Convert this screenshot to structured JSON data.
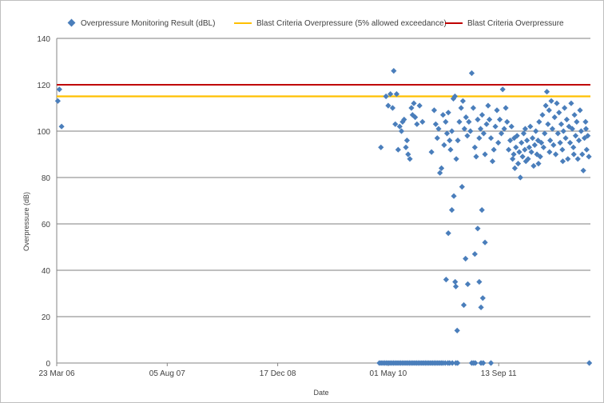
{
  "chart_data": {
    "type": "scatter",
    "title": "",
    "xlabel": "Date",
    "ylabel": "Overpressure (dB)",
    "ylim": [
      0,
      140
    ],
    "y_ticks": [
      0,
      20,
      40,
      60,
      80,
      100,
      120,
      140
    ],
    "x_ticks": [
      "23 Mar 06",
      "05 Aug 07",
      "17 Dec 08",
      "01 May 10",
      "13 Sep 11"
    ],
    "x_tick_days": [
      0,
      500,
      1000,
      1500,
      2000
    ],
    "xlim_days": [
      0,
      2415
    ],
    "grid": "horizontal major gridlines",
    "legend_position": "top",
    "colors": {
      "scatter": "#4a7ebb",
      "criteria_5pct": "#ffc000",
      "criteria": "#c00000",
      "grid": "#7f7f7f"
    },
    "series": [
      {
        "name": "Overpressure Monitoring Result (dBL)",
        "kind": "scatter",
        "points": [
          [
            5,
            113
          ],
          [
            12,
            118
          ],
          [
            22,
            102
          ],
          [
            1467,
            93
          ],
          [
            1490,
            115
          ],
          [
            1500,
            111
          ],
          [
            1510,
            116
          ],
          [
            1520,
            110
          ],
          [
            1525,
            126
          ],
          [
            1532,
            103
          ],
          [
            1538,
            116
          ],
          [
            1545,
            92
          ],
          [
            1552,
            102
          ],
          [
            1560,
            100
          ],
          [
            1565,
            104
          ],
          [
            1572,
            105
          ],
          [
            1580,
            93
          ],
          [
            1585,
            96
          ],
          [
            1590,
            90
          ],
          [
            1598,
            88
          ],
          [
            1605,
            110
          ],
          [
            1610,
            107
          ],
          [
            1616,
            112
          ],
          [
            1622,
            106
          ],
          [
            1630,
            103
          ],
          [
            1642,
            111
          ],
          [
            1655,
            104
          ],
          [
            1696,
            91
          ],
          [
            1708,
            109
          ],
          [
            1715,
            103
          ],
          [
            1722,
            97
          ],
          [
            1728,
            101
          ],
          [
            1734,
            82
          ],
          [
            1741,
            84
          ],
          [
            1748,
            107
          ],
          [
            1753,
            94
          ],
          [
            1760,
            104
          ],
          [
            1766,
            99
          ],
          [
            1772,
            108
          ],
          [
            1778,
            96
          ],
          [
            1782,
            92
          ],
          [
            1788,
            100
          ],
          [
            1795,
            114
          ],
          [
            1802,
            115
          ],
          [
            1808,
            88
          ],
          [
            1815,
            96
          ],
          [
            1822,
            104
          ],
          [
            1830,
            110
          ],
          [
            1838,
            113
          ],
          [
            1845,
            101
          ],
          [
            1852,
            106
          ],
          [
            1858,
            98
          ],
          [
            1865,
            104
          ],
          [
            1872,
            100
          ],
          [
            1878,
            125
          ],
          [
            1885,
            110
          ],
          [
            1892,
            93
          ],
          [
            1898,
            89
          ],
          [
            1905,
            105
          ],
          [
            1912,
            97
          ],
          [
            1918,
            101
          ],
          [
            1925,
            107
          ],
          [
            1932,
            99
          ],
          [
            1938,
            90
          ],
          [
            1945,
            103
          ],
          [
            1952,
            111
          ],
          [
            1958,
            105
          ],
          [
            1965,
            97
          ],
          [
            1972,
            87
          ],
          [
            1978,
            92
          ],
          [
            1985,
            102
          ],
          [
            1992,
            109
          ],
          [
            1998,
            95
          ],
          [
            2005,
            105
          ],
          [
            2012,
            99
          ],
          [
            2018,
            118
          ],
          [
            2025,
            101
          ],
          [
            2032,
            110
          ],
          [
            2038,
            104
          ],
          [
            2045,
            92
          ],
          [
            2052,
            96
          ],
          [
            2058,
            102
          ],
          [
            2063,
            88
          ],
          [
            2068,
            90
          ],
          [
            2073,
            84
          ],
          [
            2078,
            93
          ],
          [
            2083,
            98
          ],
          [
            2088,
            86
          ],
          [
            2093,
            91
          ],
          [
            2098,
            80
          ],
          [
            2103,
            95
          ],
          [
            2108,
            89
          ],
          [
            2113,
            99
          ],
          [
            2118,
            92
          ],
          [
            2123,
            87
          ],
          [
            2128,
            96
          ],
          [
            2133,
            88
          ],
          [
            2138,
            93
          ],
          [
            2143,
            102
          ],
          [
            2148,
            91
          ],
          [
            2153,
            97
          ],
          [
            2158,
            85
          ],
          [
            2163,
            94
          ],
          [
            2168,
            100
          ],
          [
            2173,
            90
          ],
          [
            2178,
            96
          ],
          [
            2183,
            104
          ],
          [
            2188,
            89
          ],
          [
            2193,
            95
          ],
          [
            2198,
            107
          ],
          [
            2203,
            93
          ],
          [
            2208,
            99
          ],
          [
            2213,
            111
          ],
          [
            2218,
            117
          ],
          [
            2223,
            103
          ],
          [
            2228,
            109
          ],
          [
            2233,
            96
          ],
          [
            2238,
            113
          ],
          [
            2243,
            101
          ],
          [
            2248,
            94
          ],
          [
            2253,
            106
          ],
          [
            2258,
            90
          ],
          [
            2263,
            112
          ],
          [
            2268,
            99
          ],
          [
            2273,
            108
          ],
          [
            2278,
            95
          ],
          [
            2283,
            103
          ],
          [
            2288,
            92
          ],
          [
            2293,
            100
          ],
          [
            2298,
            110
          ],
          [
            2303,
            97
          ],
          [
            2308,
            105
          ],
          [
            2313,
            88
          ],
          [
            2318,
            102
          ],
          [
            2323,
            95
          ],
          [
            2328,
            112
          ],
          [
            2333,
            101
          ],
          [
            2338,
            93
          ],
          [
            2343,
            107
          ],
          [
            2348,
            98
          ],
          [
            2353,
            104
          ],
          [
            2358,
            88
          ],
          [
            2363,
            96
          ],
          [
            2368,
            109
          ],
          [
            2373,
            100
          ],
          [
            2378,
            90
          ],
          [
            2383,
            83
          ],
          [
            2388,
            97
          ],
          [
            2393,
            104
          ],
          [
            2398,
            92
          ],
          [
            2403,
            98
          ],
          [
            2408,
            89
          ],
          [
            2070,
            97
          ],
          [
            2120,
            101
          ],
          [
            2180,
            86
          ],
          [
            2230,
            91
          ],
          [
            2290,
            87
          ],
          [
            2340,
            90
          ],
          [
            2395,
            101
          ],
          [
            1762,
            36
          ],
          [
            1772,
            56
          ],
          [
            1788,
            66
          ],
          [
            1797,
            72
          ],
          [
            1803,
            35
          ],
          [
            1806,
            33
          ],
          [
            1812,
            14
          ],
          [
            1834,
            76
          ],
          [
            1842,
            25
          ],
          [
            1850,
            45
          ],
          [
            1860,
            34
          ],
          [
            1892,
            47
          ],
          [
            1905,
            58
          ],
          [
            1912,
            35
          ],
          [
            1920,
            24
          ],
          [
            1924,
            66
          ],
          [
            1928,
            28
          ],
          [
            1938,
            52
          ],
          [
            1460,
            0
          ],
          [
            1468,
            0
          ],
          [
            1476,
            0
          ],
          [
            1484,
            0
          ],
          [
            1492,
            0
          ],
          [
            1500,
            0
          ],
          [
            1508,
            0
          ],
          [
            1516,
            0
          ],
          [
            1524,
            0
          ],
          [
            1532,
            0
          ],
          [
            1540,
            0
          ],
          [
            1548,
            0
          ],
          [
            1556,
            0
          ],
          [
            1564,
            0
          ],
          [
            1572,
            0
          ],
          [
            1580,
            0
          ],
          [
            1588,
            0
          ],
          [
            1596,
            0
          ],
          [
            1604,
            0
          ],
          [
            1612,
            0
          ],
          [
            1620,
            0
          ],
          [
            1628,
            0
          ],
          [
            1636,
            0
          ],
          [
            1644,
            0
          ],
          [
            1652,
            0
          ],
          [
            1660,
            0
          ],
          [
            1668,
            0
          ],
          [
            1676,
            0
          ],
          [
            1684,
            0
          ],
          [
            1692,
            0
          ],
          [
            1700,
            0
          ],
          [
            1708,
            0
          ],
          [
            1716,
            0
          ],
          [
            1724,
            0
          ],
          [
            1732,
            0
          ],
          [
            1740,
            0
          ],
          [
            1748,
            0
          ],
          [
            1758,
            0
          ],
          [
            1770,
            0
          ],
          [
            1778,
            0
          ],
          [
            1790,
            0
          ],
          [
            1806,
            0
          ],
          [
            1814,
            0
          ],
          [
            1878,
            0
          ],
          [
            1886,
            0
          ],
          [
            1894,
            0
          ],
          [
            1920,
            0
          ],
          [
            1930,
            0
          ],
          [
            1965,
            0
          ],
          [
            2410,
            0
          ]
        ]
      },
      {
        "name": "Blast Criteria Overpressure (5% allowed exceedance)",
        "kind": "hline",
        "y": 115
      },
      {
        "name": "Blast Criteria Overpressure",
        "kind": "hline",
        "y": 120
      }
    ]
  }
}
